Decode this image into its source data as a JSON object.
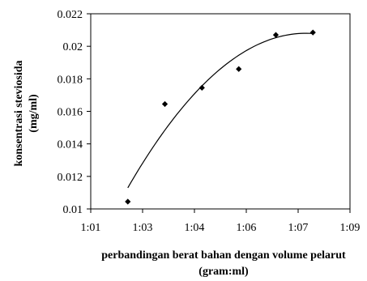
{
  "chart_data": {
    "type": "scatter",
    "xlabel_line1": "perbandingan berat bahan dengan volume pelarut",
    "xlabel_line2": "(gram:ml)",
    "ylabel_line1": "konsentrasi steviosida",
    "ylabel_line2": "(mg/ml)",
    "x_ticks": [
      "1:01",
      "1:03",
      "1:04",
      "1:06",
      "1:07",
      "1:09"
    ],
    "y_ticks": [
      "0.01",
      "0.012",
      "0.014",
      "0.016",
      "0.018",
      "0.02",
      "0.022"
    ],
    "xlim": [
      0,
      10
    ],
    "ylim": [
      0.01,
      0.022
    ],
    "points": [
      {
        "x": 1.43,
        "y": 0.01045
      },
      {
        "x": 2.86,
        "y": 0.01645
      },
      {
        "x": 4.29,
        "y": 0.01745
      },
      {
        "x": 5.71,
        "y": 0.0186
      },
      {
        "x": 7.14,
        "y": 0.0207
      },
      {
        "x": 8.57,
        "y": 0.02085
      }
    ],
    "trendline": {
      "type": "polynomial-2",
      "x_range": [
        1.43,
        8.57
      ],
      "y_at_start": 0.0113,
      "y_vertex": 0.0208,
      "x_vertex": 8.3
    },
    "marker": "diamond",
    "colors": {
      "marker": "#000000",
      "line": "#000000",
      "axis": "#000000"
    },
    "grid": false,
    "legend": "none"
  }
}
